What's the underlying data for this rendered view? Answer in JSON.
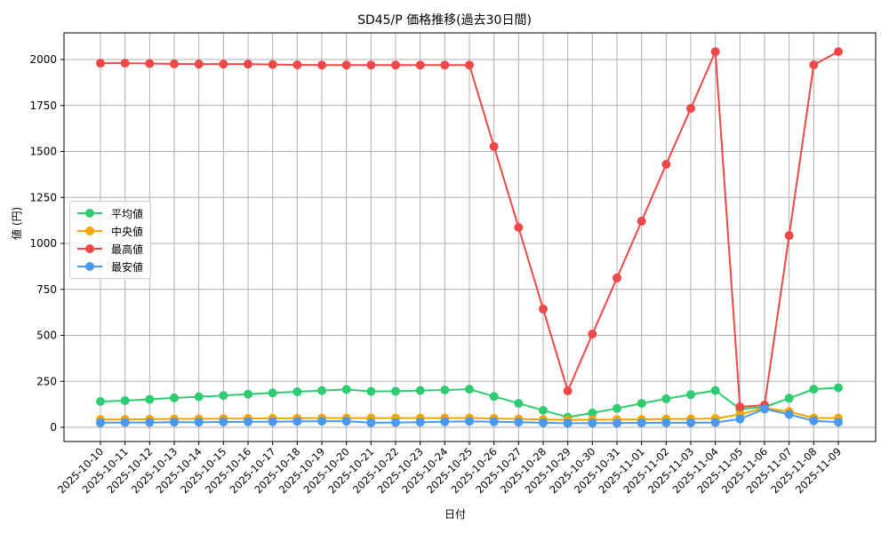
{
  "chart_data": {
    "type": "line",
    "title": "SD45/P 価格推移(過去30日間)",
    "xlabel": "日付",
    "ylabel": "値 (円)",
    "ylim": [
      -75,
      2140
    ],
    "yticks": [
      0,
      250,
      500,
      750,
      1000,
      1250,
      1500,
      1750,
      2000
    ],
    "grid": true,
    "legend_position": "center left",
    "categories": [
      "2025-10-10",
      "2025-10-11",
      "2025-10-12",
      "2025-10-13",
      "2025-10-14",
      "2025-10-15",
      "2025-10-16",
      "2025-10-17",
      "2025-10-18",
      "2025-10-19",
      "2025-10-20",
      "2025-10-21",
      "2025-10-22",
      "2025-10-23",
      "2025-10-24",
      "2025-10-25",
      "2025-10-26",
      "2025-10-27",
      "2025-10-28",
      "2025-10-29",
      "2025-10-30",
      "2025-10-31",
      "2025-11-01",
      "2025-11-02",
      "2025-11-03",
      "2025-11-04",
      "2025-11-05",
      "2025-11-06",
      "2025-11-07",
      "2025-11-08",
      "2025-11-09"
    ],
    "series": [
      {
        "name": "平均値",
        "color": "#2ecc71",
        "values": [
          140,
          145,
          152,
          160,
          166,
          173,
          180,
          187,
          193,
          200,
          206,
          195,
          196,
          200,
          203,
          207,
          168,
          130,
          92,
          55,
          78,
          103,
          130,
          155,
          178,
          200,
          100,
          110,
          158,
          207,
          215
        ]
      },
      {
        "name": "中央値",
        "color": "#f5a500",
        "values": [
          42,
          43,
          44,
          45,
          46,
          47,
          48,
          49,
          49,
          50,
          50,
          50,
          50,
          50,
          50,
          50,
          48,
          45,
          42,
          40,
          41,
          42,
          43,
          45,
          46,
          48,
          70,
          105,
          85,
          50,
          50
        ]
      },
      {
        "name": "最高値",
        "color": "#f04848",
        "values": [
          1980,
          1980,
          1978,
          1976,
          1975,
          1975,
          1975,
          1973,
          1971,
          1970,
          1970,
          1970,
          1970,
          1970,
          1970,
          1970,
          1527,
          1087,
          643,
          198,
          507,
          812,
          1121,
          1430,
          1734,
          2043,
          111,
          121,
          1043,
          1971,
          2043
        ]
      },
      {
        "name": "最安値",
        "color": "#4a98f0",
        "values": [
          25,
          26,
          26,
          28,
          28,
          29,
          30,
          30,
          32,
          33,
          33,
          25,
          26,
          28,
          30,
          32,
          30,
          28,
          25,
          22,
          23,
          23,
          24,
          25,
          25,
          26,
          45,
          100,
          70,
          35,
          28
        ]
      }
    ]
  }
}
